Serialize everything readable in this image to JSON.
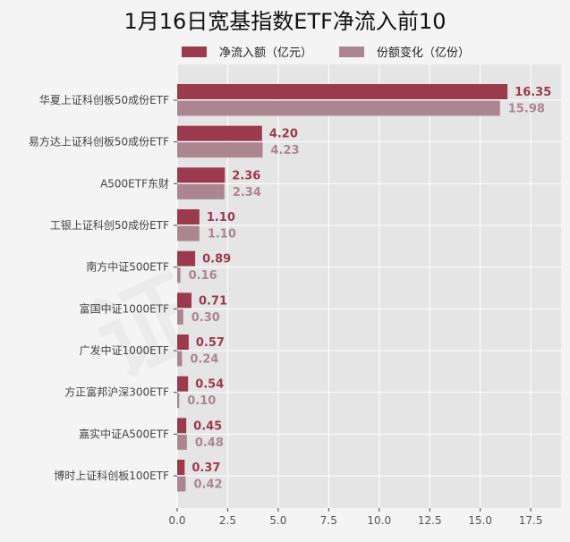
{
  "chart_data": {
    "type": "bar",
    "orientation": "horizontal",
    "title": "1月16日宽基指数ETF净流入前10",
    "categories": [
      "华夏上证科创板50成份ETF",
      "易方达上证科创板50成份ETF",
      "A500ETF东财",
      "工银上证科创50成份ETF",
      "南方中证500ETF",
      "富国中证1000ETF",
      "广发中证1000ETF",
      "方正富邦沪深300ETF",
      "嘉实中证A500ETF",
      "博时上证科创板100ETF"
    ],
    "series": [
      {
        "name": "净流入额（亿元）",
        "color": "#9b3a4d",
        "values": [
          16.35,
          4.2,
          2.36,
          1.1,
          0.89,
          0.71,
          0.57,
          0.54,
          0.45,
          0.37
        ]
      },
      {
        "name": "份额变化（亿份）",
        "color": "#ab8690",
        "values": [
          15.98,
          4.23,
          2.34,
          1.1,
          0.16,
          0.3,
          0.24,
          0.1,
          0.48,
          0.42
        ]
      }
    ],
    "xlim": [
      0,
      19
    ],
    "xticks": [
      "0.0",
      "2.5",
      "5.0",
      "7.5",
      "10.0",
      "12.5",
      "15.0",
      "17.5"
    ],
    "xlabel": "",
    "ylabel": "",
    "grid": true,
    "legend": "top",
    "plot_background": "#e5e5e5",
    "watermark": "证券之星"
  }
}
